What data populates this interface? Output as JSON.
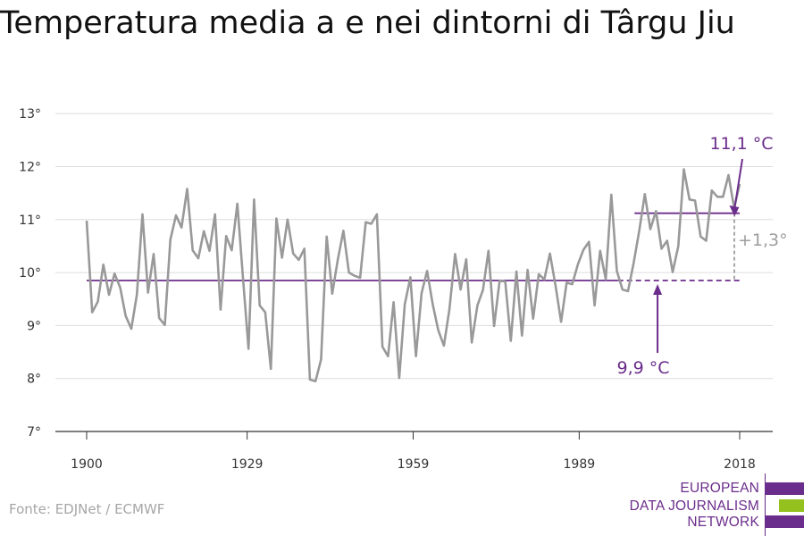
{
  "title": "Temperatura media a e nei dintorni di Târgu Jiu",
  "source": "Fonte: EDJNet / ECMWF",
  "logo": {
    "lines": [
      "EUROPEAN",
      "DATA JOURNALISM",
      "NETWORK"
    ],
    "colors": [
      "#6b2d8b",
      "#95c11f",
      "#6b2d8b"
    ]
  },
  "chart_data": {
    "type": "line",
    "x_ticks": [
      1900,
      1929,
      1959,
      1989,
      2018
    ],
    "y_ticks": [
      7,
      8,
      9,
      10,
      11,
      12,
      13
    ],
    "y_tick_labels": [
      "7°",
      "8°",
      "9°",
      "10°",
      "11°",
      "12°",
      "13°"
    ],
    "xlim": [
      1900,
      2018
    ],
    "ylim": [
      7,
      13
    ],
    "grid": true,
    "series": [
      {
        "color": "#999999",
        "x_start": 1900,
        "x_end": 2018,
        "values": [
          10.98,
          9.25,
          9.45,
          10.15,
          9.58,
          9.98,
          9.72,
          9.18,
          8.94,
          9.58,
          11.1,
          9.62,
          10.35,
          9.14,
          9.01,
          10.62,
          11.08,
          10.85,
          11.58,
          10.42,
          10.27,
          10.78,
          10.41,
          11.1,
          9.3,
          10.69,
          10.42,
          11.3,
          9.92,
          8.56,
          11.38,
          9.38,
          9.25,
          8.18,
          11.02,
          10.28,
          11.0,
          10.36,
          10.24,
          10.45,
          7.98,
          7.95,
          8.36,
          10.68,
          9.6,
          10.25,
          10.79,
          10.0,
          9.94,
          9.9,
          10.95,
          10.92,
          11.1,
          8.6,
          8.42,
          9.44,
          8.01,
          9.4,
          9.91,
          8.42,
          9.61,
          10.03,
          9.4,
          8.91,
          8.62,
          9.31,
          10.35,
          9.68,
          10.25,
          8.68,
          9.38,
          9.67,
          10.41,
          8.99,
          9.85,
          9.83,
          8.71,
          10.02,
          8.81,
          10.05,
          9.13,
          9.97,
          9.87,
          10.36,
          9.76,
          9.07,
          9.81,
          9.78,
          10.15,
          10.43,
          10.58,
          9.38,
          10.41,
          9.87,
          11.47,
          10.03,
          9.68,
          9.65,
          10.18,
          10.78,
          11.48,
          10.82,
          11.16,
          10.45,
          10.6,
          10.01,
          10.5,
          11.95,
          11.38,
          11.36,
          10.68,
          10.6,
          11.55,
          11.43,
          11.43,
          11.84,
          11.22,
          11.67
        ]
      }
    ],
    "reference_lines": [
      {
        "value": 9.85,
        "x_from": 1900,
        "x_to": 1996,
        "style": "solid",
        "color": "#6b2d8b"
      },
      {
        "value": 9.85,
        "x_from": 1996,
        "x_to": 2018,
        "style": "dashed",
        "color": "#6b2d8b"
      },
      {
        "value": 11.12,
        "x_from": 1999,
        "x_to": 2018,
        "style": "solid",
        "color": "#6b2d8b"
      }
    ],
    "annotations": [
      {
        "text": "11,1 °C",
        "color": "#6b2d8b",
        "points_to": [
          2017.9,
          11.3
        ]
      },
      {
        "text": "9,9 °C",
        "color": "#6b2d8b",
        "points_to": [
          2003,
          9.85
        ]
      },
      {
        "text": "+1,3°",
        "color": "#9e9e9e"
      }
    ]
  }
}
